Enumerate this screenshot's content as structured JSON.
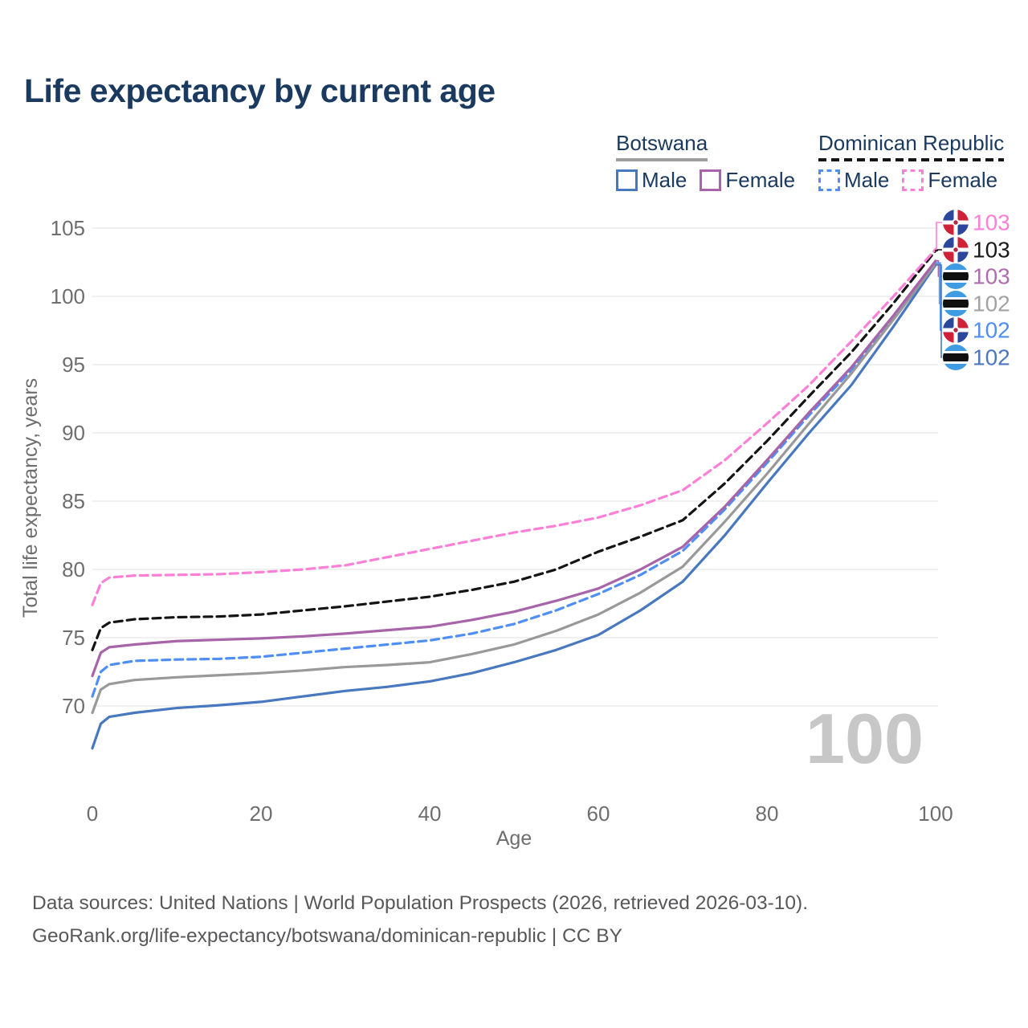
{
  "title": "Life expectancy by current age",
  "legend": {
    "botswana": {
      "title": "Botswana",
      "male": "Male",
      "female": "Female",
      "male_color": "#4878bf",
      "female_color": "#a864a8",
      "underline_color": "#9e9e9e",
      "line_style": "solid"
    },
    "dominican": {
      "title": "Dominican Republic",
      "male": "Male",
      "female": "Female",
      "male_color": "#4e8ef5",
      "female_color": "#fd80d8",
      "underline_color": "#141414",
      "line_style": "dashed"
    }
  },
  "footer": {
    "line1": "Data sources: United Nations | World Population Prospects (2026, retrieved 2026-03-10).",
    "line2": "GeoRank.org/life-expectancy/botswana/dominican-republic | CC BY"
  },
  "colors": {
    "title_text": "#1b3a60",
    "tick_text": "#6e6e6e",
    "gridline": "#e8e8e8",
    "watermark": "#c7c7c7",
    "botswana_flag_blue": "#3f9be2",
    "dominican_flag_blue": "#2b479c",
    "dominican_flag_red": "#cf2137"
  },
  "chart_data": {
    "type": "line",
    "title": "Life expectancy by current age",
    "xlabel": "Age",
    "ylabel": "Total life expectancy, years",
    "xlim": [
      0,
      100
    ],
    "ylim": [
      66,
      105
    ],
    "x_ticks": [
      0,
      20,
      40,
      60,
      80,
      100
    ],
    "y_ticks": [
      70,
      75,
      80,
      85,
      90,
      95,
      100,
      105
    ],
    "grid": true,
    "legend_position": "top-right",
    "frame_watermark": "100",
    "ages": [
      0,
      1,
      2,
      5,
      10,
      15,
      20,
      25,
      30,
      35,
      40,
      45,
      50,
      55,
      60,
      65,
      70,
      75,
      80,
      85,
      90,
      95,
      100
    ],
    "series": [
      {
        "id": "dr_female",
        "name": "Dominican Republic Female",
        "style": "dashed",
        "color": "#fd80d8",
        "flag": "dr",
        "end_label": "103",
        "end_label_color": "#fd80d8",
        "values": [
          77.4,
          79.0,
          79.4,
          79.55,
          79.6,
          79.65,
          79.8,
          80.0,
          80.3,
          80.9,
          81.5,
          82.1,
          82.7,
          83.2,
          83.8,
          84.7,
          85.8,
          88.0,
          90.7,
          93.5,
          96.7,
          100.0,
          103.45
        ]
      },
      {
        "id": "dr_both",
        "name": "Dominican Republic",
        "style": "dashed",
        "color": "#141414",
        "flag": "dr",
        "end_label": "103",
        "end_label_color": "#1a1a1a",
        "values": [
          74.1,
          75.7,
          76.1,
          76.35,
          76.5,
          76.55,
          76.7,
          77.0,
          77.3,
          77.65,
          78.0,
          78.5,
          79.1,
          80.0,
          81.3,
          82.4,
          83.6,
          86.3,
          89.4,
          92.7,
          95.9,
          99.5,
          103.35
        ]
      },
      {
        "id": "bw_female",
        "name": "Botswana Female",
        "style": "solid",
        "color": "#a864a8",
        "flag": "bw",
        "end_label": "103",
        "end_label_color": "#b06cb0",
        "values": [
          72.2,
          73.9,
          74.3,
          74.5,
          74.75,
          74.85,
          74.95,
          75.1,
          75.3,
          75.55,
          75.8,
          76.3,
          76.9,
          77.7,
          78.6,
          80.0,
          81.65,
          84.6,
          88.0,
          91.5,
          94.8,
          98.6,
          102.6
        ]
      },
      {
        "id": "bw_both",
        "name": "Botswana",
        "style": "solid",
        "color": "#999999",
        "flag": "bw",
        "end_label": "102",
        "end_label_color": "#a3a3a3",
        "values": [
          69.5,
          71.2,
          71.6,
          71.9,
          72.1,
          72.25,
          72.4,
          72.6,
          72.85,
          73.0,
          73.2,
          73.8,
          74.5,
          75.5,
          76.7,
          78.3,
          80.2,
          83.5,
          87.0,
          90.7,
          94.35,
          98.3,
          102.4
        ]
      },
      {
        "id": "dr_male",
        "name": "Dominican Republic Male",
        "style": "dashed",
        "color": "#4e8ef5",
        "flag": "dr",
        "end_label": "102",
        "end_label_color": "#4e8ef5",
        "values": [
          70.7,
          72.5,
          73.0,
          73.3,
          73.4,
          73.45,
          73.6,
          73.9,
          74.2,
          74.5,
          74.8,
          75.3,
          76.0,
          77.0,
          78.2,
          79.6,
          81.35,
          84.4,
          87.8,
          91.3,
          94.6,
          98.4,
          102.45
        ]
      },
      {
        "id": "bw_male",
        "name": "Botswana Male",
        "style": "solid",
        "color": "#4878bf",
        "flag": "bw",
        "end_label": "102",
        "end_label_color": "#4a77c0",
        "values": [
          66.9,
          68.7,
          69.2,
          69.5,
          69.85,
          70.05,
          70.3,
          70.7,
          71.1,
          71.4,
          71.8,
          72.4,
          73.2,
          74.1,
          75.2,
          77.0,
          79.1,
          82.5,
          86.3,
          90.0,
          93.5,
          97.8,
          102.3
        ]
      }
    ]
  }
}
